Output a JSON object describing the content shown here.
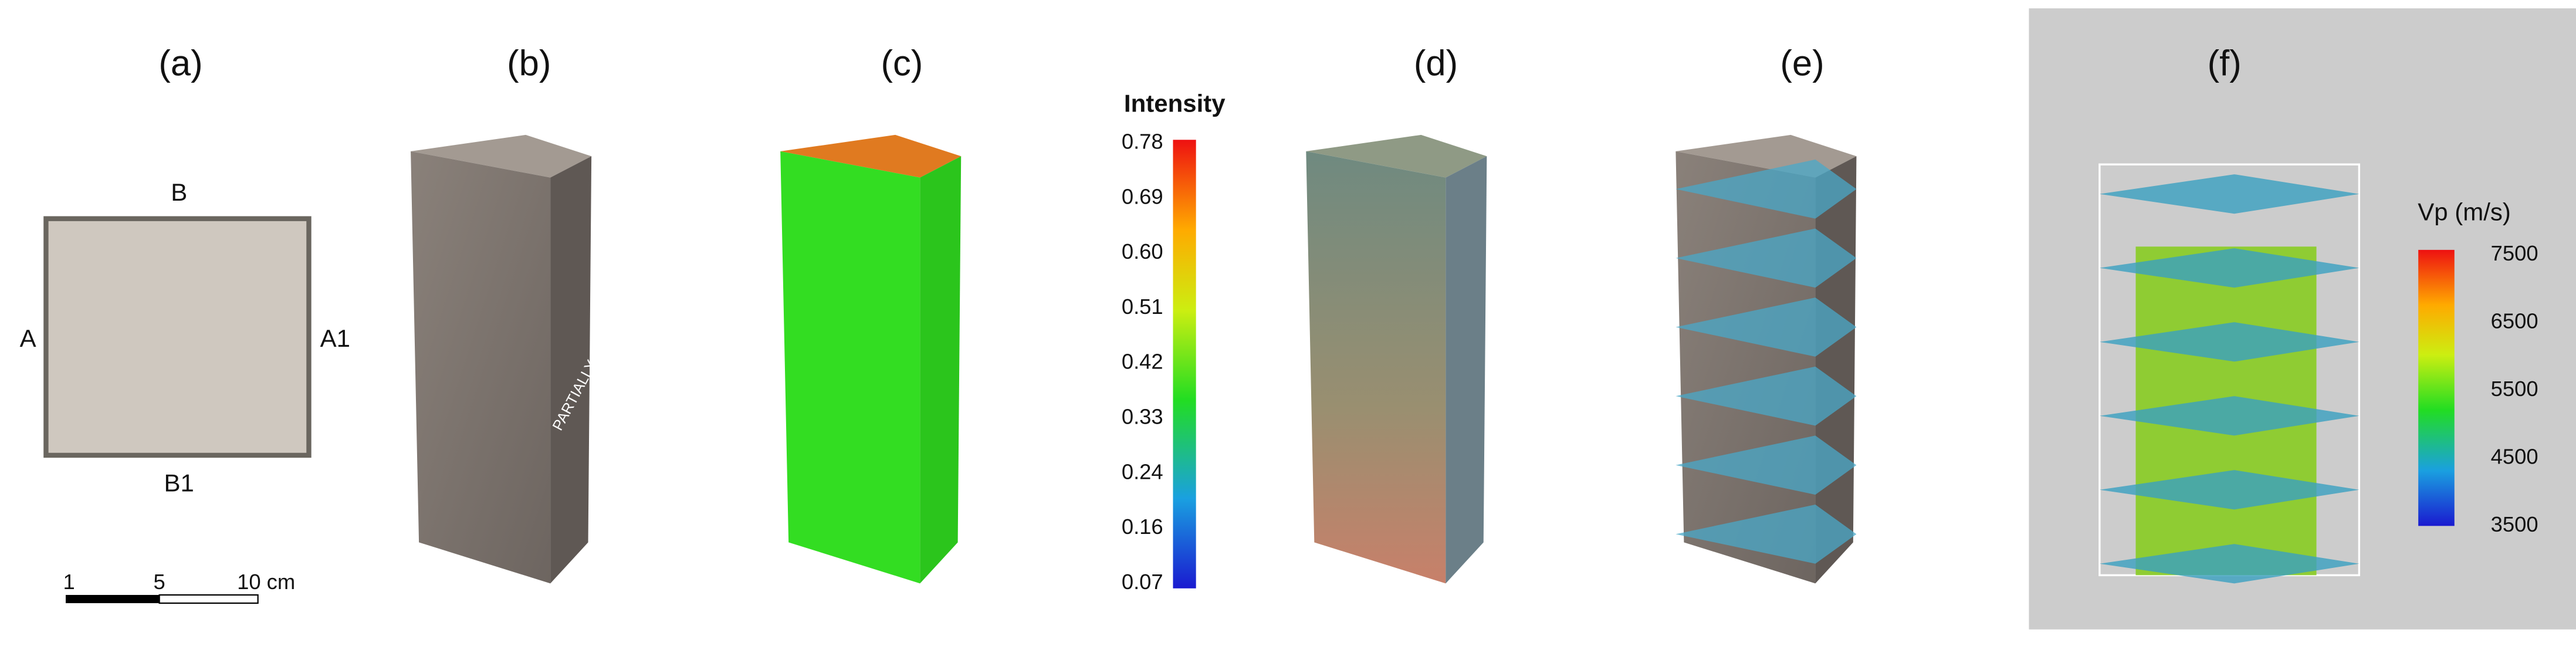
{
  "panels": [
    {
      "label": "(a)",
      "annotations": [
        "B",
        "A",
        "A1",
        "B1"
      ],
      "scale_bar": [
        "1",
        "5",
        "10 cm"
      ]
    },
    {
      "label": "(b)",
      "annotation": "PARTIALLY WELDED FRACTURE"
    },
    {
      "label": "(c)"
    },
    {
      "label": "(d)"
    },
    {
      "label": "(e)"
    },
    {
      "label": "(f)"
    }
  ],
  "intensity_colorbar": {
    "title": "Intensity",
    "ticks": [
      "0.78",
      "0.69",
      "0.60",
      "0.51",
      "0.42",
      "0.33",
      "0.24",
      "0.16",
      "0.07"
    ]
  },
  "vp_colorbar": {
    "title": "Vp (m/s)",
    "ticks": [
      "7500",
      "6500",
      "5500",
      "4500",
      "3500"
    ]
  }
}
